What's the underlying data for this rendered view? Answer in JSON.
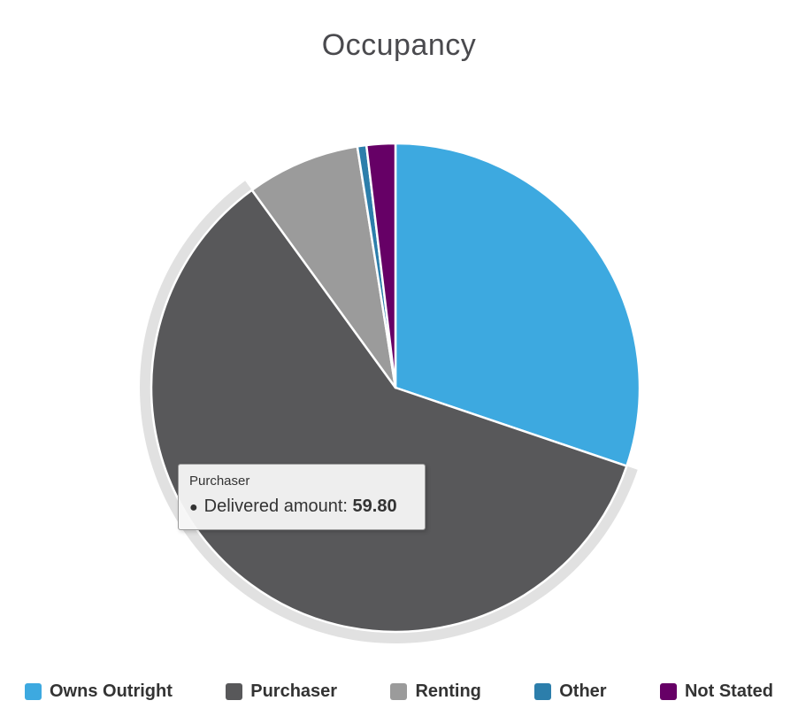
{
  "title": "Occupancy",
  "chart_data": {
    "type": "pie",
    "title": "Occupancy",
    "series_name": "Delivered amount",
    "legend_position": "bottom",
    "start_angle_deg": 0,
    "slices": [
      {
        "label": "Owns Outright",
        "value": 30.2,
        "color": "#3DA9E0",
        "hovered": false
      },
      {
        "label": "Purchaser",
        "value": 59.8,
        "color": "#58585A",
        "hovered": true
      },
      {
        "label": "Renting",
        "value": 7.5,
        "color": "#9B9B9B",
        "hovered": false
      },
      {
        "label": "Other",
        "value": 0.6,
        "color": "#2C7EAB",
        "hovered": false
      },
      {
        "label": "Not Stated",
        "value": 1.9,
        "color": "#660066",
        "hovered": false
      }
    ]
  },
  "tooltip": {
    "category": "Purchaser",
    "bullet": "●",
    "series_label": "Delivered amount:",
    "value": "59.80"
  }
}
